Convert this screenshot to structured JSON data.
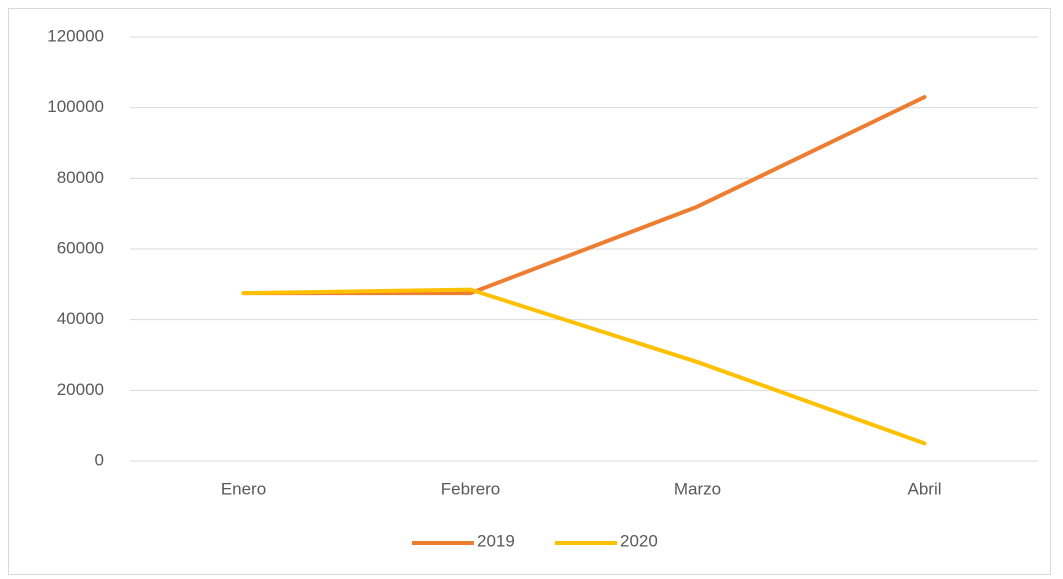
{
  "chart_data": {
    "type": "line",
    "categories": [
      "Enero",
      "Febrero",
      "Marzo",
      "Abril"
    ],
    "series": [
      {
        "name": "2019",
        "color": "#ED7D31",
        "values": [
          47500,
          47500,
          72000,
          103000
        ]
      },
      {
        "name": "2020",
        "color": "#FFC000",
        "values": [
          47500,
          48500,
          28000,
          5000
        ]
      }
    ],
    "ylim": [
      0,
      120000
    ],
    "yticks": [
      0,
      20000,
      40000,
      60000,
      80000,
      100000,
      120000
    ],
    "grid": true,
    "legend": "bottom"
  }
}
